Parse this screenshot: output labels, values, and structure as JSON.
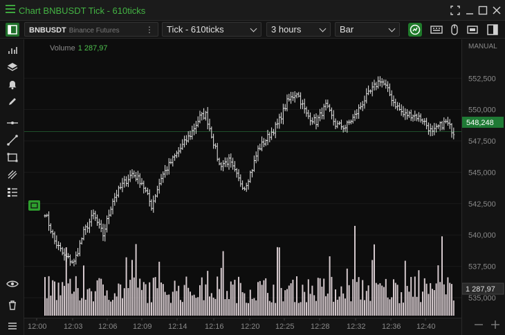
{
  "window": {
    "title": "Chart BNBUSDT Tick - 610ticks"
  },
  "toolbar": {
    "symbol": "BNBUSDT",
    "exchange": "Binance Futures",
    "aggregation": "Tick - 610ticks",
    "period": "3 hours",
    "chart_type": "Bar"
  },
  "legend": {
    "label": "Volume",
    "value": "1 287,97"
  },
  "price_axis": {
    "mode": "MANUAL",
    "current_price": "548,248",
    "volume_badge": "1 287,97"
  },
  "colors": {
    "accent": "#2e9e2e",
    "bars": "#e8e8e8",
    "volume": "#d4c8cc",
    "current": "#1f7a35"
  },
  "chart_data": {
    "type": "bar",
    "yticks": [
      "552,500",
      "550,000",
      "547,500",
      "545,000",
      "542,500",
      "540,000",
      "537,500",
      "535,000"
    ],
    "ytick_values": [
      552.5,
      550,
      547.5,
      545,
      542.5,
      540,
      537.5,
      535
    ],
    "ylim": [
      533.4,
      555.6
    ],
    "xticks": [
      "12:00",
      "12:03",
      "12:06",
      "12:09",
      "12:14",
      "12:16",
      "12:20",
      "12:25",
      "12:28",
      "12:32",
      "12:36",
      "12:40"
    ],
    "current_price": 548.248,
    "close_anchors": [
      [
        0,
        541.8
      ],
      [
        5,
        539.5
      ],
      [
        10,
        538.3
      ],
      [
        15,
        537.8
      ],
      [
        20,
        540.2
      ],
      [
        25,
        541.6
      ],
      [
        30,
        540.0
      ],
      [
        35,
        542.8
      ],
      [
        40,
        544.0
      ],
      [
        45,
        544.9
      ],
      [
        50,
        544.2
      ],
      [
        55,
        542.3
      ],
      [
        60,
        544.6
      ],
      [
        65,
        545.8
      ],
      [
        70,
        546.9
      ],
      [
        75,
        548.0
      ],
      [
        80,
        549.4
      ],
      [
        83,
        549.6
      ],
      [
        86,
        548.0
      ],
      [
        90,
        545.6
      ],
      [
        95,
        545.9
      ],
      [
        100,
        544.4
      ],
      [
        103,
        543.8
      ],
      [
        107,
        545.3
      ],
      [
        110,
        546.8
      ],
      [
        115,
        547.8
      ],
      [
        120,
        548.8
      ],
      [
        125,
        550.6
      ],
      [
        130,
        551.4
      ],
      [
        135,
        549.6
      ],
      [
        140,
        549.0
      ],
      [
        145,
        550.3
      ],
      [
        150,
        548.8
      ],
      [
        155,
        548.6
      ],
      [
        160,
        549.5
      ],
      [
        165,
        550.8
      ],
      [
        170,
        551.8
      ],
      [
        173,
        552.4
      ],
      [
        176,
        551.8
      ],
      [
        180,
        550.6
      ],
      [
        185,
        549.6
      ],
      [
        190,
        549.6
      ],
      [
        195,
        549.2
      ],
      [
        200,
        548.1
      ],
      [
        203,
        548.6
      ],
      [
        207,
        549.0
      ],
      [
        211,
        548.2
      ]
    ],
    "volume_max": 1800
  }
}
